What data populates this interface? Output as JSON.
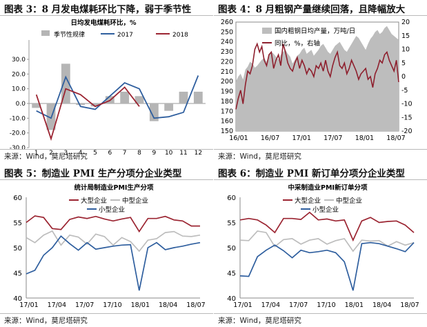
{
  "panels": [
    {
      "title": "图表 3：8 月发电煤耗环比下降，弱于季节性",
      "source": "来源：Wind，莫尼塔研究"
    },
    {
      "title": "图表 4：8 月粗钢产量继续回落，且降幅放大",
      "source": "来源：Wind，莫尼塔研究"
    },
    {
      "title": "图表 5：制造业 PMI 生产分项分企业类型",
      "source": "来源：Wind，莫尼塔研究"
    },
    {
      "title": "图表 6：制造业 PMI 新订单分项分企业类型",
      "source": "来源：Wind，莫尼塔研究"
    }
  ],
  "chart_data": [
    {
      "type": "bar",
      "title": "日均发电煤耗环比，%",
      "categories": [
        "1",
        "2",
        "3",
        "4",
        "5",
        "6",
        "7",
        "8",
        "9",
        "10",
        "11",
        "12"
      ],
      "ylim": [
        -30,
        30
      ],
      "yticks": [
        "-30.0",
        "-20.0",
        "-10.0",
        "0.0",
        "10.0",
        "20.0",
        "30.0"
      ],
      "series": [
        {
          "name": "季节性规律",
          "kind": "bar",
          "color": "#b5b5b5",
          "values": [
            -3,
            -18,
            27,
            -1,
            -2,
            5,
            8,
            5,
            -12,
            -5,
            8,
            8
          ]
        },
        {
          "name": "2017",
          "kind": "line",
          "color": "#2e5e9e",
          "values": [
            -5,
            -10,
            18,
            -2,
            -4,
            5,
            14,
            10,
            null,
            null,
            null,
            null
          ]
        },
        {
          "name": "2018",
          "kind": "line",
          "color": "#9b2431",
          "values": [
            6,
            -24,
            10,
            6,
            -2,
            2,
            11,
            -2,
            null,
            null,
            null,
            null
          ]
        }
      ],
      "extra_2017": [
        null,
        null,
        null,
        null,
        null,
        null,
        null,
        null,
        -10,
        -9,
        -6,
        19
      ]
    },
    {
      "type": "area",
      "title": "",
      "xticks": [
        "16/01",
        "16/07",
        "17/01",
        "17/07",
        "18/01",
        "18/07"
      ],
      "ylim_left": [
        150,
        260
      ],
      "ylim_right": [
        -20,
        20
      ],
      "yticks_left": [
        "150",
        "160",
        "170",
        "180",
        "190",
        "200",
        "210",
        "220",
        "230",
        "240",
        "250",
        "260"
      ],
      "yticks_right": [
        "-20",
        "-15",
        "-10",
        "-5",
        "0",
        "5",
        "10",
        "15",
        "20"
      ],
      "series": [
        {
          "name": "国内粗钢日均产量，万吨/日",
          "axis": "left",
          "color": "#bdbdbd",
          "values": [
            200,
            205,
            208,
            202,
            212,
            215,
            220,
            218,
            214,
            216,
            219,
            222,
            224,
            220,
            226,
            230,
            228,
            225,
            222,
            227,
            230,
            232,
            228,
            225,
            218,
            222,
            226,
            228,
            232,
            234,
            228,
            230,
            232,
            226,
            229,
            232,
            236,
            238,
            234,
            230,
            228,
            232,
            236,
            238,
            240,
            236,
            232,
            230,
            234,
            238,
            242,
            246,
            244,
            240,
            236,
            232,
            238,
            243,
            246,
            250,
            252,
            248,
            250,
            254,
            256,
            252,
            248,
            246,
            244,
            242
          ]
        },
        {
          "name": "同比，%，右轴",
          "axis": "right",
          "color": "#8e1f2d",
          "values": [
            -12,
            -8,
            -5,
            -10,
            -3,
            2,
            1,
            4,
            10,
            12,
            9,
            11,
            6,
            4,
            8,
            9,
            3,
            6,
            8,
            4,
            12,
            9,
            5,
            3,
            2,
            5,
            7,
            3,
            6,
            4,
            1,
            3,
            2,
            0,
            4,
            3,
            5,
            2,
            6,
            2,
            0,
            4,
            7,
            9,
            4,
            3,
            5,
            1,
            3,
            6,
            4,
            2,
            -1,
            1,
            2,
            3,
            -1,
            0,
            -4,
            1,
            3,
            6,
            5,
            8,
            9,
            6,
            4,
            2,
            6,
            -2
          ]
        }
      ]
    },
    {
      "type": "line",
      "title": "统计局制造业PMI生产分项",
      "xticks": [
        "17/01",
        "17/04",
        "17/07",
        "17/10",
        "18/01",
        "18/04",
        "18/07"
      ],
      "ylim": [
        40,
        60
      ],
      "yticks": [
        "40",
        "45",
        "50",
        "55",
        "60"
      ],
      "series": [
        {
          "name": "大型企业",
          "color": "#9b2431",
          "values": [
            55.0,
            56.3,
            56.0,
            53.8,
            53.6,
            55.6,
            56.1,
            55.8,
            56.2,
            55.7,
            55.3,
            55.7,
            56.0,
            53.2,
            55.8,
            55.8,
            56.2,
            55.5,
            55.3,
            54.3,
            54.3
          ]
        },
        {
          "name": "中型企业",
          "color": "#bdbdbd",
          "values": [
            52.0,
            51.0,
            52.5,
            53.3,
            50.5,
            52.5,
            52.1,
            50.7,
            52.7,
            52.2,
            50.5,
            52.0,
            51.2,
            49.3,
            51.5,
            51.8,
            53.0,
            53.2,
            52.3,
            52.2,
            52.5
          ]
        },
        {
          "name": "小型企业",
          "color": "#2e5e9e",
          "values": [
            44.8,
            45.5,
            48.5,
            50.0,
            52.3,
            50.8,
            49.5,
            51.0,
            49.7,
            50.0,
            50.3,
            50.5,
            50.6,
            41.5,
            50.0,
            51.0,
            49.6,
            50.0,
            50.3,
            50.7,
            51.0
          ]
        }
      ]
    },
    {
      "type": "line",
      "title": "中采制造业PMI新订单分项",
      "xticks": [
        "17/01",
        "17/04",
        "17/07",
        "17/10",
        "18/01",
        "18/04",
        "18/07"
      ],
      "ylim": [
        40,
        60
      ],
      "yticks": [
        "40",
        "45",
        "50",
        "55",
        "60"
      ],
      "series": [
        {
          "name": "大型企业",
          "color": "#9b2431",
          "values": [
            55.5,
            55.8,
            55.5,
            54.5,
            53.0,
            55.8,
            55.8,
            55.6,
            57.0,
            55.5,
            55.7,
            55.3,
            55.5,
            51.5,
            55.3,
            56.0,
            55.0,
            55.2,
            55.3,
            54.5,
            53.0
          ]
        },
        {
          "name": "中型企业",
          "color": "#bdbdbd",
          "values": [
            51.5,
            51.4,
            53.3,
            53.0,
            50.2,
            51.6,
            51.8,
            50.7,
            51.5,
            51.8,
            50.7,
            51.4,
            51.8,
            49.3,
            51.5,
            51.3,
            51.4,
            50.3,
            51.2,
            50.5,
            51.0
          ]
        },
        {
          "name": "小型企业",
          "color": "#2e5e9e",
          "values": [
            44.4,
            44.3,
            48.2,
            49.5,
            50.5,
            49.4,
            48.0,
            49.5,
            49.0,
            49.2,
            49.5,
            49.0,
            47.2,
            41.5,
            50.8,
            51.0,
            50.8,
            50.3,
            49.8,
            49.2,
            51.0
          ]
        }
      ]
    }
  ]
}
